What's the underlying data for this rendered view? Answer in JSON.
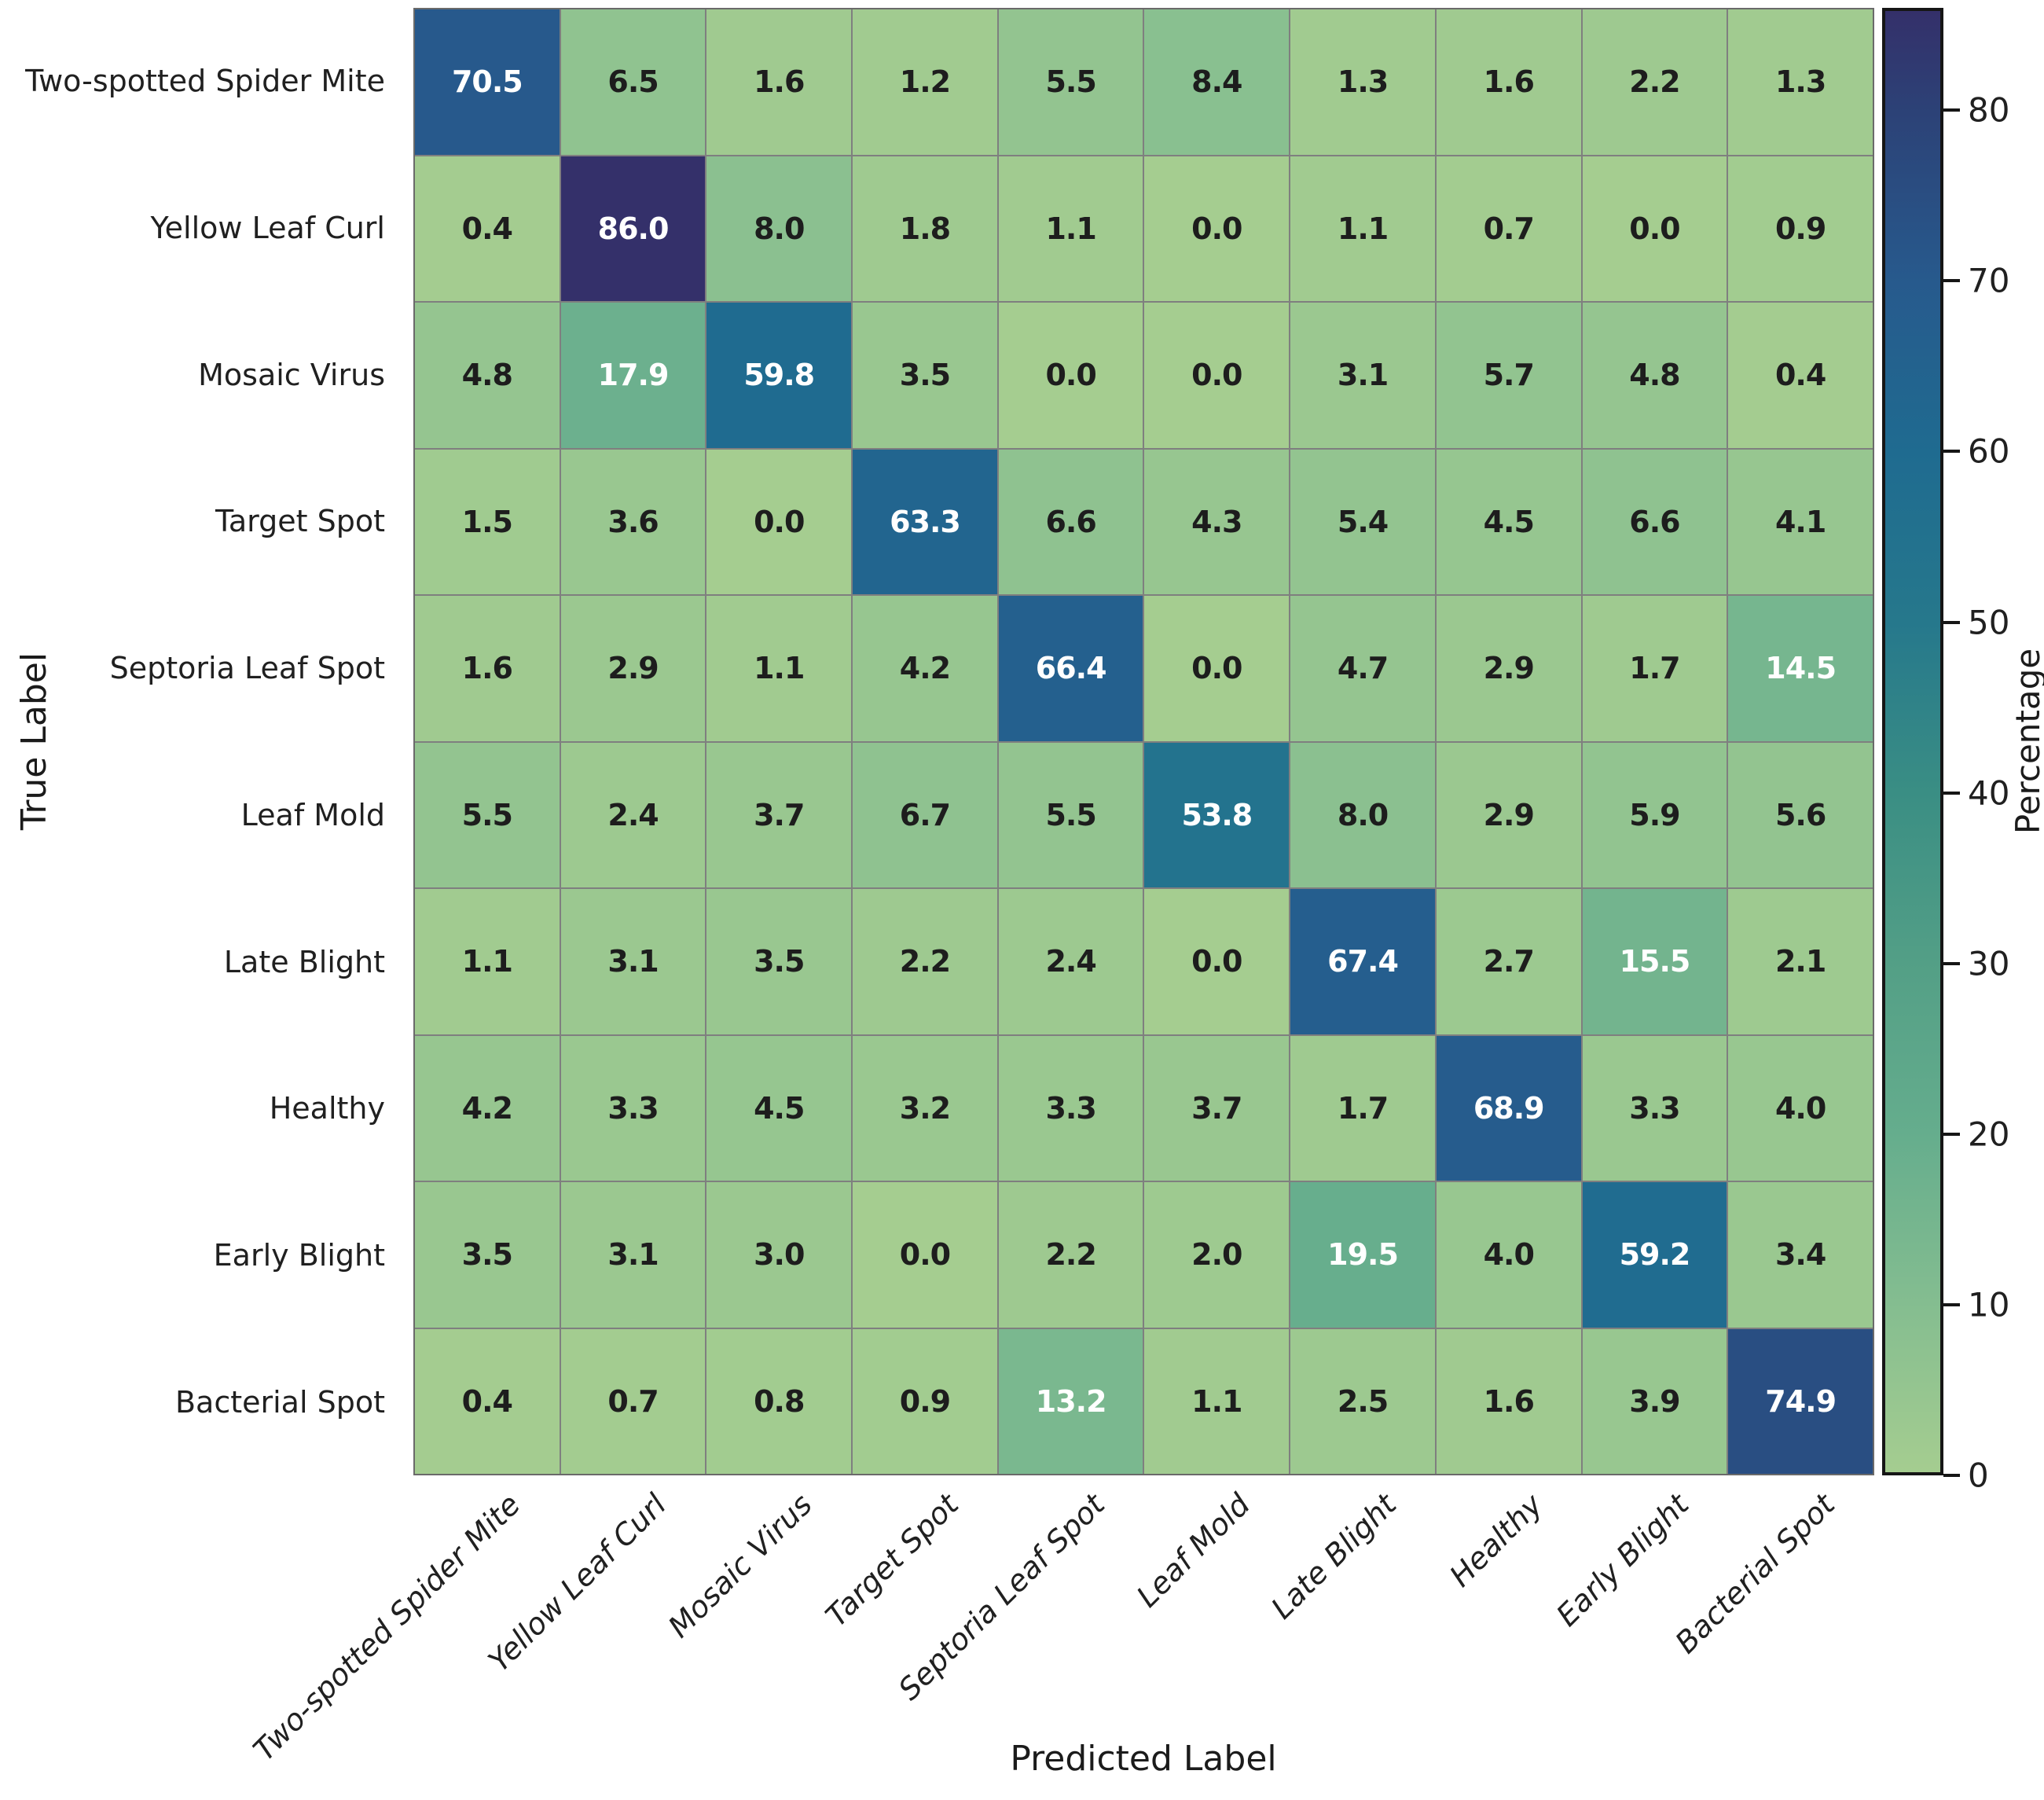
{
  "axes": {
    "x_title": "Predicted Label",
    "y_title": "True Label"
  },
  "colorbar": {
    "title": "Percentage",
    "ticks": [
      0,
      10,
      20,
      30,
      40,
      50,
      60,
      70,
      80
    ],
    "vmin": 0,
    "vmax": 86,
    "border_color": "#161616"
  },
  "colormap": {
    "name": "crest-like",
    "stops": [
      [
        0,
        "#a5cd90"
      ],
      [
        10,
        "#84bd90"
      ],
      [
        20,
        "#65ad8d"
      ],
      [
        30,
        "#539f86"
      ],
      [
        40,
        "#3a8e84"
      ],
      [
        50,
        "#26788c"
      ],
      [
        60,
        "#1f6b90"
      ],
      [
        70,
        "#275a8d"
      ],
      [
        80,
        "#2c4277"
      ],
      [
        86,
        "#34306a"
      ]
    ],
    "white_text_threshold": 12.5,
    "dark_text_color": "#1d1d1d",
    "grid_line_color": "#7f7f7f"
  },
  "chart_data": {
    "type": "heatmap",
    "title": "",
    "xlabel": "Predicted Label",
    "ylabel": "True Label",
    "colorbar_label": "Percentage",
    "value_units": "percent",
    "value_format": "0.1f",
    "categories": [
      "Two-spotted Spider Mite",
      "Yellow Leaf Curl",
      "Mosaic Virus",
      "Target Spot",
      "Septoria Leaf Spot",
      "Leaf Mold",
      "Late Blight",
      "Healthy",
      "Early Blight",
      "Bacterial Spot"
    ],
    "values": [
      [
        70.5,
        6.5,
        1.6,
        1.2,
        5.5,
        8.4,
        1.3,
        1.6,
        2.2,
        1.3
      ],
      [
        0.4,
        86.0,
        8.0,
        1.8,
        1.1,
        0.0,
        1.1,
        0.7,
        0.0,
        0.9
      ],
      [
        4.8,
        17.9,
        59.8,
        3.5,
        0.0,
        0.0,
        3.1,
        5.7,
        4.8,
        0.4
      ],
      [
        1.5,
        3.6,
        0.0,
        63.3,
        6.6,
        4.3,
        5.4,
        4.5,
        6.6,
        4.1
      ],
      [
        1.6,
        2.9,
        1.1,
        4.2,
        66.4,
        0.0,
        4.7,
        2.9,
        1.7,
        14.5
      ],
      [
        5.5,
        2.4,
        3.7,
        6.7,
        5.5,
        53.8,
        8.0,
        2.9,
        5.9,
        5.6
      ],
      [
        1.1,
        3.1,
        3.5,
        2.2,
        2.4,
        0.0,
        67.4,
        2.7,
        15.5,
        2.1
      ],
      [
        4.2,
        3.3,
        4.5,
        3.2,
        3.3,
        3.7,
        1.7,
        68.9,
        3.3,
        4.0
      ],
      [
        3.5,
        3.1,
        3.0,
        0.0,
        2.2,
        2.0,
        19.5,
        4.0,
        59.2,
        3.4
      ],
      [
        0.4,
        0.7,
        0.8,
        0.9,
        13.2,
        1.1,
        2.5,
        1.6,
        3.9,
        74.9
      ]
    ],
    "axis_ranges": {
      "colorbar": [
        0,
        86
      ]
    },
    "legend_position": "right-colorbar",
    "grid": "cell-borders"
  }
}
